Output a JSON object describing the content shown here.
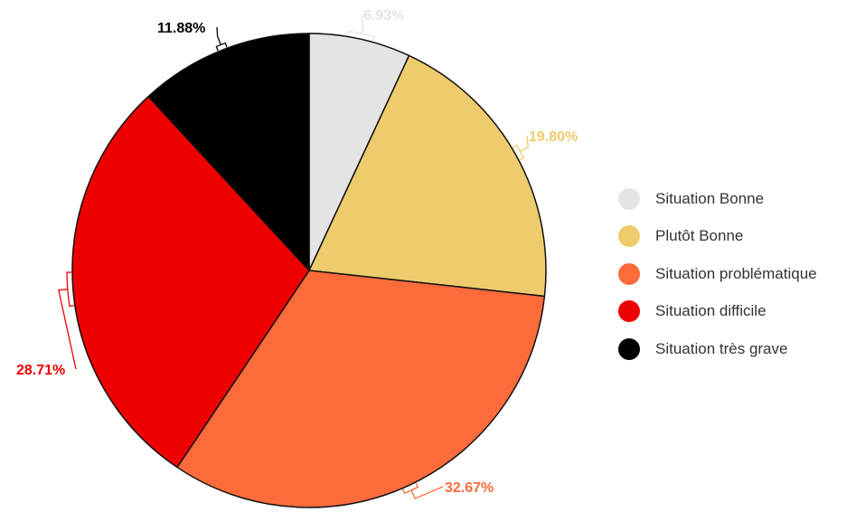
{
  "chart_data": {
    "type": "pie",
    "title": "",
    "categories": [
      "Situation Bonne",
      "Plutôt Bonne",
      "Situation problématique",
      "Situation difficile",
      "Situation très grave"
    ],
    "values": [
      6.93,
      19.8,
      32.67,
      28.71,
      11.88
    ],
    "labels": [
      "6.93%",
      "19.80%",
      "32.67%",
      "28.71%",
      "11.88%"
    ],
    "colors": [
      "#e4e4e4",
      "#eecb6c",
      "#fd6b3b",
      "#ee0000",
      "#000000"
    ],
    "label_colors": [
      "#e4e4e4",
      "#eecb6c",
      "#fd6b3b",
      "#ee0000",
      "#000000"
    ],
    "start_angle": "12 o'clock",
    "direction": "clockwise",
    "legend_position": "right"
  },
  "legend": {
    "items": [
      {
        "label": "Situation Bonne",
        "color": "#e4e4e4"
      },
      {
        "label": "Plutôt Bonne",
        "color": "#eecb6c"
      },
      {
        "label": "Situation problématique",
        "color": "#fd6b3b"
      },
      {
        "label": "Situation difficile",
        "color": "#ee0000"
      },
      {
        "label": "Situation très grave",
        "color": "#000000"
      }
    ]
  }
}
